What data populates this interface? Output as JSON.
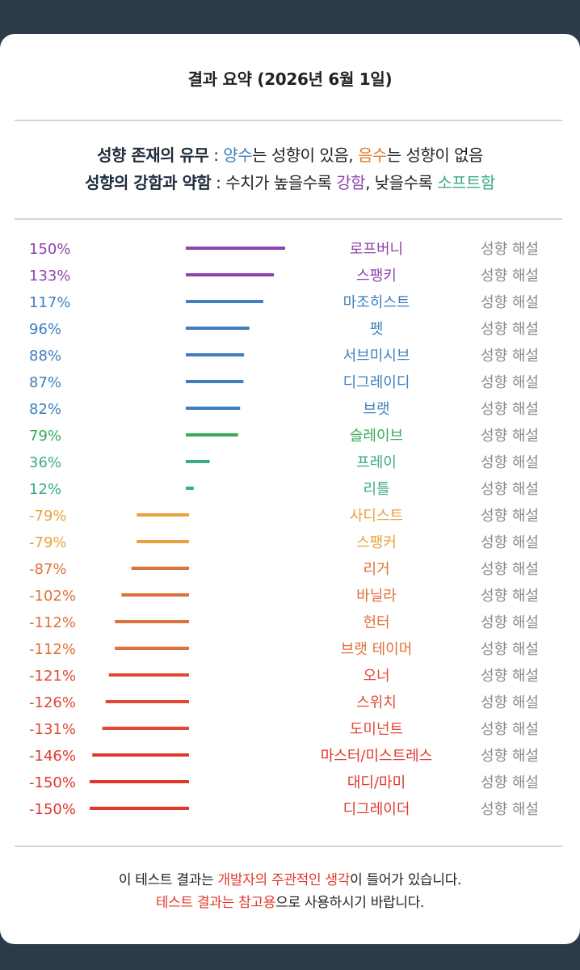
{
  "header": {
    "title": "결과 요약 (2026년 6월 1일)"
  },
  "legend": {
    "line1": {
      "label": "성향 존재의 유무",
      "sep": " : ",
      "pos_word": "양수",
      "mid1": "는 성향이 있음, ",
      "neg_word": "음수",
      "mid2": "는 성향이 없음"
    },
    "line2": {
      "label": "성향의 강함과 약함",
      "sep": " : ",
      "mid1": "수치가 높을수록 ",
      "strong_word": "강함",
      "mid2": ", 낮을수록 ",
      "soft_word": "소프트함"
    }
  },
  "colors": {
    "positive": "#3d7fbf",
    "negative": "#e07b2a",
    "strong": "#8e44ad",
    "soft": "#3aaa8a",
    "divider": "#d4d4d4",
    "link": "#8a8a8a"
  },
  "chart_data": {
    "type": "bar",
    "orientation": "horizontal",
    "unit": "%",
    "xlim": [
      -150,
      150
    ],
    "rows": [
      {
        "value": 150,
        "label_text": "150%",
        "category": "로프버니",
        "link": "성향 해설",
        "color": "#8e44ad"
      },
      {
        "value": 133,
        "label_text": "133%",
        "category": "스팽키",
        "link": "성향 해설",
        "color": "#8e44ad"
      },
      {
        "value": 117,
        "label_text": "117%",
        "category": "마조히스트",
        "link": "성향 해설",
        "color": "#3d7fbf"
      },
      {
        "value": 96,
        "label_text": "96%",
        "category": "펫",
        "link": "성향 해설",
        "color": "#3d7fbf"
      },
      {
        "value": 88,
        "label_text": "88%",
        "category": "서브미시브",
        "link": "성향 해설",
        "color": "#3d7fbf"
      },
      {
        "value": 87,
        "label_text": "87%",
        "category": "디그레이디",
        "link": "성향 해설",
        "color": "#3d7fbf"
      },
      {
        "value": 82,
        "label_text": "82%",
        "category": "브랫",
        "link": "성향 해설",
        "color": "#3d7fbf"
      },
      {
        "value": 79,
        "label_text": "79%",
        "category": "슬레이브",
        "link": "성향 해설",
        "color": "#3aaa5a"
      },
      {
        "value": 36,
        "label_text": "36%",
        "category": "프레이",
        "link": "성향 해설",
        "color": "#3aaa8a"
      },
      {
        "value": 12,
        "label_text": "12%",
        "category": "리틀",
        "link": "성향 해설",
        "color": "#3aaa8a"
      },
      {
        "value": -79,
        "label_text": "-79%",
        "category": "사디스트",
        "link": "성향 해설",
        "color": "#e9a23b"
      },
      {
        "value": -79,
        "label_text": "-79%",
        "category": "스팽커",
        "link": "성향 해설",
        "color": "#e9a23b"
      },
      {
        "value": -87,
        "label_text": "-87%",
        "category": "리거",
        "link": "성향 해설",
        "color": "#e0703a"
      },
      {
        "value": -102,
        "label_text": "-102%",
        "category": "바닐라",
        "link": "성향 해설",
        "color": "#e0703a"
      },
      {
        "value": -112,
        "label_text": "-112%",
        "category": "헌터",
        "link": "성향 해설",
        "color": "#e0703a"
      },
      {
        "value": -112,
        "label_text": "-112%",
        "category": "브랫 테이머",
        "link": "성향 해설",
        "color": "#e0703a"
      },
      {
        "value": -121,
        "label_text": "-121%",
        "category": "오너",
        "link": "성향 해설",
        "color": "#e04a35"
      },
      {
        "value": -126,
        "label_text": "-126%",
        "category": "스위치",
        "link": "성향 해설",
        "color": "#e04a35"
      },
      {
        "value": -131,
        "label_text": "-131%",
        "category": "도미넌트",
        "link": "성향 해설",
        "color": "#e04a35"
      },
      {
        "value": -146,
        "label_text": "-146%",
        "category": "마스터/미스트레스",
        "link": "성향 해설",
        "color": "#e0392b"
      },
      {
        "value": -150,
        "label_text": "-150%",
        "category": "대디/마미",
        "link": "성향 해설",
        "color": "#e0392b"
      },
      {
        "value": -150,
        "label_text": "-150%",
        "category": "디그레이더",
        "link": "성향 해설",
        "color": "#e0392b"
      }
    ]
  },
  "footer": {
    "line1": {
      "pre": "이 테스트 결과는 ",
      "highlight": "개발자의 주관적인 생각",
      "post": "이 들어가 있습니다."
    },
    "line2": {
      "highlight": "테스트 결과는 참고용",
      "post": "으로 사용하시기 바랍니다."
    }
  }
}
